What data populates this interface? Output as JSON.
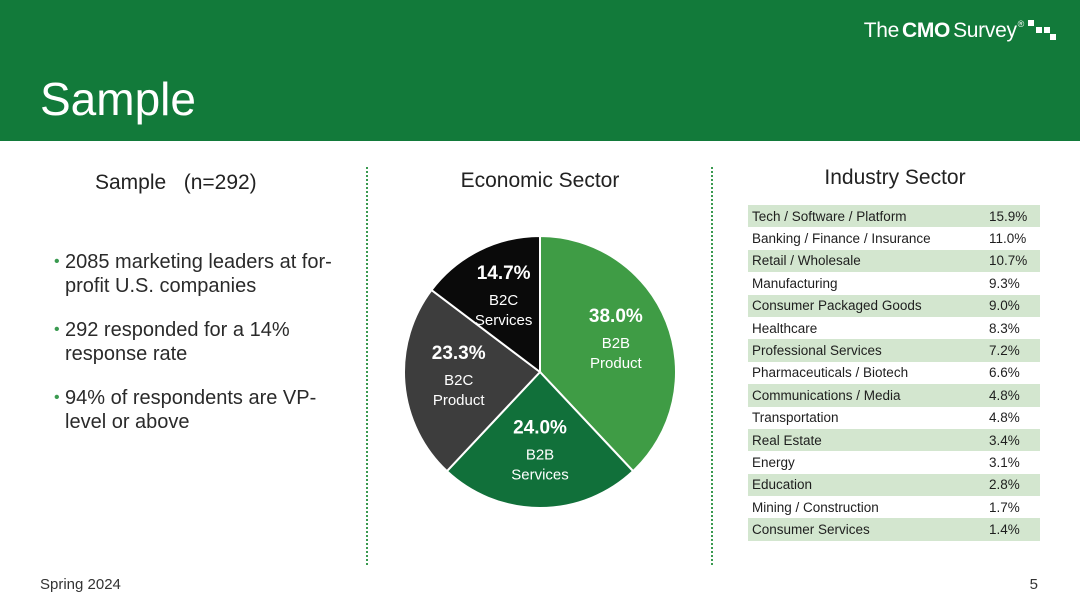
{
  "header": {
    "title": "Sample",
    "brand": {
      "part1": "The",
      "part2": "CMO",
      "part3": "Survey",
      "mark": "®"
    }
  },
  "sample": {
    "heading": "Sample   (n=292)",
    "bullets": [
      "2085 marketing leaders at for-profit U.S. companies",
      "292 responded for a 14% response rate",
      "94% of respondents are VP-level or above"
    ]
  },
  "economic": {
    "heading": "Economic Sector"
  },
  "industry": {
    "heading": "Industry Sector"
  },
  "footer": {
    "left": "Spring 2024",
    "page": "5"
  },
  "colors": {
    "header_green": "#127a3a",
    "b2b_product": "#3f9c45",
    "b2b_services": "#11703a",
    "b2c_product": "#3d3d3d",
    "b2c_services": "#0a0a0a",
    "table_shade": "#d3e6cf"
  },
  "chart_data": [
    {
      "type": "pie",
      "title": "Economic Sector",
      "slices": [
        {
          "percent": "38.0%",
          "line1": "B2B",
          "line2": "Product",
          "value": 38.0,
          "color": "#3f9c45"
        },
        {
          "percent": "24.0%",
          "line1": "B2B",
          "line2": "Services",
          "value": 24.0,
          "color": "#11703a"
        },
        {
          "percent": "23.3%",
          "line1": "B2C",
          "line2": "Product",
          "value": 23.3,
          "color": "#3d3d3d"
        },
        {
          "percent": "14.7%",
          "line1": "B2C",
          "line2": "Services",
          "value": 14.7,
          "color": "#0a0a0a"
        }
      ]
    },
    {
      "type": "table",
      "title": "Industry Sector",
      "rows": [
        {
          "name": "Tech / Software / Platform",
          "value": "15.9%"
        },
        {
          "name": "Banking / Finance / Insurance",
          "value": "11.0%"
        },
        {
          "name": "Retail / Wholesale",
          "value": "10.7%"
        },
        {
          "name": "Manufacturing",
          "value": "9.3%"
        },
        {
          "name": "Consumer Packaged Goods",
          "value": "9.0%"
        },
        {
          "name": "Healthcare",
          "value": "8.3%"
        },
        {
          "name": "Professional Services",
          "value": "7.2%"
        },
        {
          "name": "Pharmaceuticals / Biotech",
          "value": "6.6%"
        },
        {
          "name": "Communications / Media",
          "value": "4.8%"
        },
        {
          "name": "Transportation",
          "value": "4.8%"
        },
        {
          "name": "Real Estate",
          "value": "3.4%"
        },
        {
          "name": "Energy",
          "value": "3.1%"
        },
        {
          "name": "Education",
          "value": "2.8%"
        },
        {
          "name": "Mining / Construction",
          "value": "1.7%"
        },
        {
          "name": "Consumer Services",
          "value": "1.4%"
        }
      ]
    }
  ]
}
